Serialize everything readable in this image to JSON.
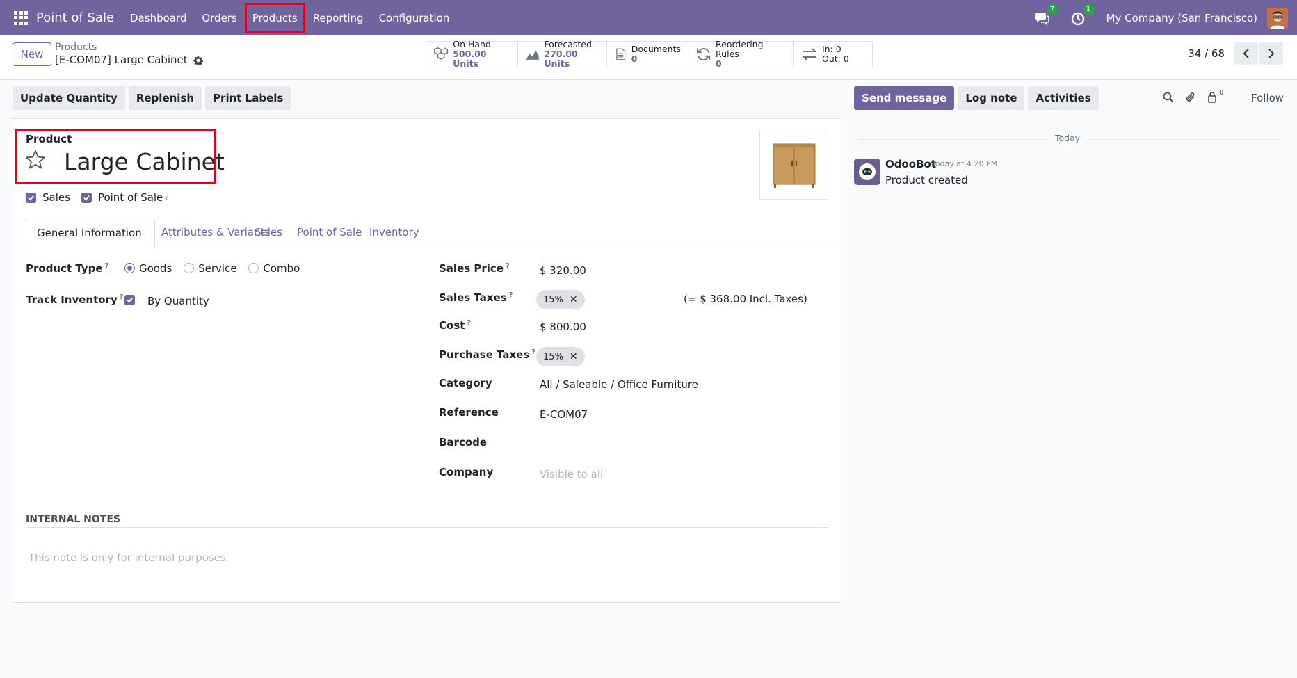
{
  "navbar": {
    "app_title": "Point of Sale",
    "menu": [
      {
        "label": "Dashboard"
      },
      {
        "label": "Orders"
      },
      {
        "label": "Products"
      },
      {
        "label": "Reporting"
      },
      {
        "label": "Configuration"
      }
    ],
    "messages_count": "7",
    "activities_count": "1",
    "company": "My Company (San Francisco)"
  },
  "control_panel": {
    "new_label": "New",
    "breadcrumb_parent": "Products",
    "breadcrumb_current": "[E-COM07] Large Cabinet",
    "stats": [
      {
        "label": "On Hand",
        "value": "500.00 Units",
        "icon": "cubes-icon"
      },
      {
        "label": "Forecasted",
        "value": "270.00 Units",
        "icon": "area-chart-icon"
      },
      {
        "label": "Documents",
        "value": "0",
        "icon": "file-icon"
      },
      {
        "label": "Reordering Rules",
        "value": "0",
        "icon": "refresh-icon"
      },
      {
        "label": "In: 0",
        "value": "Out: 0",
        "icon": "exchange-icon"
      }
    ],
    "pager": "34 / 68"
  },
  "actions": {
    "update_quantity": "Update Quantity",
    "replenish": "Replenish",
    "print_labels": "Print Labels"
  },
  "form": {
    "product_label": "Product",
    "product_name": "Large Cabinet",
    "sales_label": "Sales",
    "pos_label": "Point of Sale",
    "help_mark": "?",
    "tabs": [
      {
        "label": "General Information"
      },
      {
        "label": "Attributes & Variants"
      },
      {
        "label": "Sales"
      },
      {
        "label": "Point of Sale"
      },
      {
        "label": "Inventory"
      }
    ],
    "product_type_label": "Product Type",
    "product_type_options": [
      "Goods",
      "Service",
      "Combo"
    ],
    "track_inventory_label": "Track Inventory",
    "track_inventory_value": "By Quantity",
    "sales_price_label": "Sales Price",
    "sales_price": "$ 320.00",
    "sales_taxes_label": "Sales Taxes",
    "sales_tax_tag": "15%",
    "incl_taxes": "(= $ 368.00 Incl. Taxes)",
    "cost_label": "Cost",
    "cost": "$ 800.00",
    "purchase_taxes_label": "Purchase Taxes",
    "purchase_tax_tag": "15%",
    "category_label": "Category",
    "category": "All / Saleable / Office Furniture",
    "reference_label": "Reference",
    "reference": "E-COM07",
    "barcode_label": "Barcode",
    "company_label": "Company",
    "company_placeholder": "Visible to all",
    "internal_notes_title": "INTERNAL NOTES",
    "internal_notes_placeholder": "This note is only for internal purposes."
  },
  "chatter": {
    "send_message": "Send message",
    "log_note": "Log note",
    "activities": "Activities",
    "followers_count": "0",
    "follow": "Follow",
    "today": "Today",
    "author": "OdooBot",
    "time": "Today at 4:20 PM",
    "body": "Product created"
  },
  "colors": {
    "brand": "#71639e",
    "highlight": "#e0001b",
    "badge": "#28a745"
  }
}
